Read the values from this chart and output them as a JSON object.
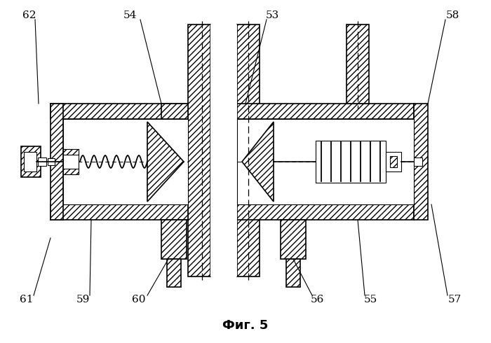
{
  "title": "Фиг. 5",
  "bg_color": "#ffffff",
  "lw": 1.2,
  "hatch": "////",
  "thin_lw": 0.8
}
